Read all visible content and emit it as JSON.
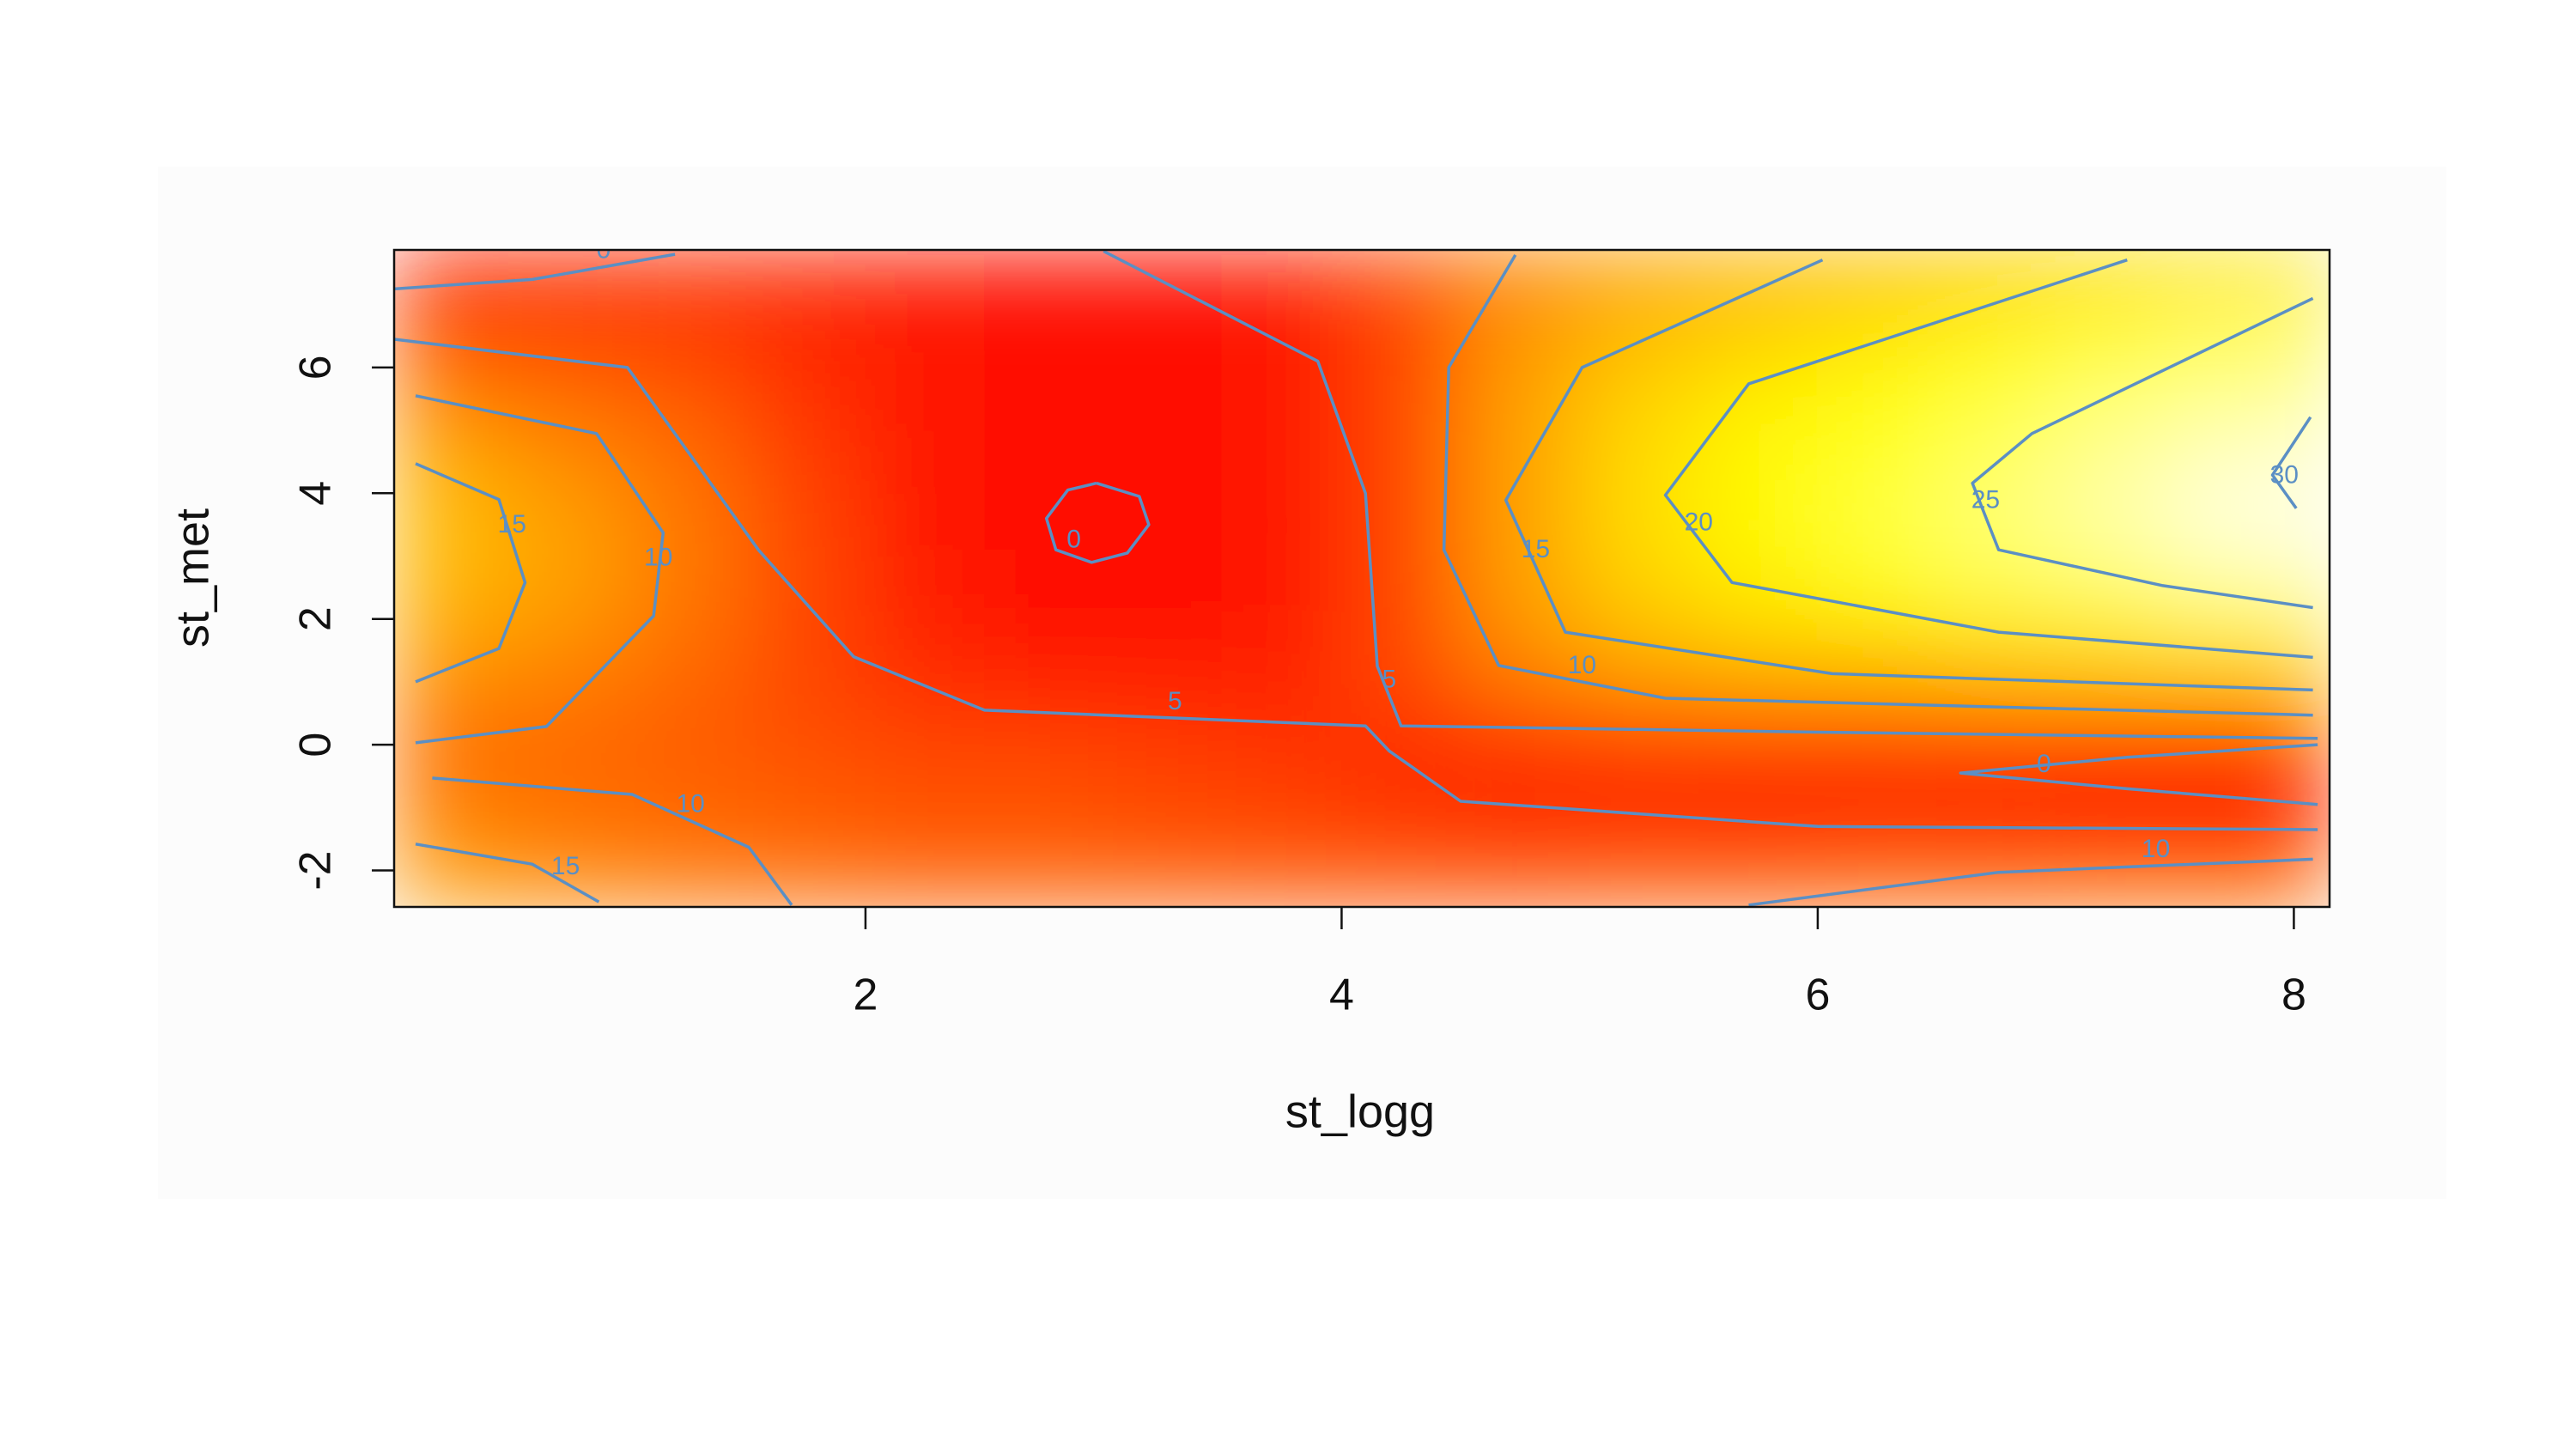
{
  "chart_data": {
    "type": "heatmap",
    "xlabel": "st_logg",
    "ylabel": "st_met",
    "xlim": [
      0.02,
      8.15
    ],
    "ylim": [
      -2.58,
      7.87
    ],
    "xticks": [
      2,
      4,
      6,
      8
    ],
    "yticks": [
      -2,
      0,
      2,
      4,
      6
    ],
    "colormap": "heat",
    "contour_color": "#5b8fc4",
    "x": [
      0.25,
      0.75,
      1.25,
      1.75,
      2.25,
      2.75,
      3.25,
      3.75,
      4.25,
      4.75,
      5.25,
      5.75,
      6.25,
      6.75,
      7.25,
      7.75
    ],
    "y": [
      -2.25,
      -1.5,
      -0.75,
      0,
      0.75,
      1.5,
      2.5,
      3.5,
      4.5,
      5.5,
      6.5,
      7.5
    ],
    "z": [
      [
        15,
        13,
        11,
        10,
        9,
        9,
        9,
        8,
        8,
        8,
        9,
        9,
        10,
        10,
        11,
        11
      ],
      [
        13,
        11,
        10,
        9,
        8,
        8,
        7,
        7,
        6,
        5,
        5,
        5,
        5,
        5,
        4,
        4
      ],
      [
        11,
        10,
        9,
        8,
        7,
        7,
        6,
        5,
        3,
        2,
        2,
        1,
        1,
        0,
        -1,
        -1
      ],
      [
        10,
        9,
        8,
        7,
        6,
        6,
        5,
        4,
        3,
        3,
        4,
        4,
        4,
        4,
        4,
        4
      ],
      [
        12,
        11,
        9,
        6,
        4,
        3,
        3,
        3,
        6,
        10,
        12,
        13,
        13,
        14,
        14,
        14
      ],
      [
        15,
        13,
        10,
        6,
        3,
        1,
        1,
        2,
        6,
        13,
        17,
        19,
        20,
        21,
        22,
        23
      ],
      [
        17,
        15,
        11,
        6,
        2,
        0,
        0,
        1,
        6,
        15,
        20,
        23,
        25,
        27,
        28,
        30
      ],
      [
        18,
        15,
        11,
        6,
        1,
        -1,
        -0.5,
        1,
        6,
        15,
        21,
        24,
        27,
        29,
        31,
        33
      ],
      [
        16,
        13,
        10,
        5,
        1,
        0,
        0,
        1,
        6,
        15,
        21,
        24,
        26,
        28,
        30,
        32
      ],
      [
        12,
        10,
        8,
        4,
        1,
        0,
        0,
        1,
        6,
        15,
        20,
        23,
        25,
        27,
        29,
        30
      ],
      [
        7,
        6,
        5,
        3,
        1,
        0,
        0,
        1,
        6,
        14,
        18,
        20,
        22,
        24,
        26,
        28
      ],
      [
        1,
        2,
        3,
        3,
        2,
        1,
        1,
        2,
        6,
        12,
        15,
        17,
        18,
        19,
        21,
        22
      ]
    ],
    "contours": [
      {
        "level": 0,
        "x": [
          0.02,
          0.6,
          1.2
        ],
        "y": [
          7.25,
          7.4,
          7.8
        ]
      },
      {
        "level": 5,
        "x": [
          0.02,
          1.0,
          1.55,
          1.95,
          2.5,
          4.1,
          4.2,
          4.5,
          6.0,
          8.1
        ],
        "y": [
          6.45,
          6.0,
          3.1,
          1.4,
          0.55,
          0.3,
          -0.1,
          -0.9,
          -1.3,
          -1.35
        ]
      },
      {
        "level": 5,
        "x": [
          3.0,
          3.9,
          4.1,
          4.15,
          4.25,
          6.0,
          8.1
        ],
        "y": [
          7.85,
          6.1,
          4.0,
          1.25,
          0.3,
          0.2,
          0.1
        ]
      },
      {
        "level": 0,
        "x": [
          2.97,
          3.15,
          3.19,
          3.1,
          2.95,
          2.8,
          2.76,
          2.85,
          2.97
        ],
        "y": [
          4.16,
          3.95,
          3.5,
          3.05,
          2.9,
          3.1,
          3.6,
          4.05,
          4.16
        ]
      },
      {
        "level": 0,
        "x": [
          8.1,
          7.3,
          6.6,
          7.3,
          8.1
        ],
        "y": [
          0.0,
          -0.2,
          -0.45,
          -0.7,
          -0.95
        ]
      },
      {
        "level": 10,
        "x": [
          0.11,
          0.66,
          1.11,
          1.15,
          0.87,
          0.11
        ],
        "y": [
          0.03,
          0.29,
          2.05,
          3.37,
          4.95,
          5.55
        ]
      },
      {
        "level": 15,
        "x": [
          0.11,
          0.46,
          0.57,
          0.46,
          0.11
        ],
        "y": [
          1.0,
          1.53,
          2.58,
          3.9,
          4.47
        ]
      },
      {
        "level": 10,
        "x": [
          0.18,
          1.02,
          1.51,
          1.69
        ],
        "y": [
          -0.53,
          -0.79,
          -1.63,
          -2.55
        ]
      },
      {
        "level": 15,
        "x": [
          0.11,
          0.6,
          0.88
        ],
        "y": [
          -1.58,
          -1.9,
          -2.5
        ]
      },
      {
        "level": 10,
        "x": [
          4.73,
          4.45,
          4.43,
          4.66,
          5.36,
          6.76,
          8.08
        ],
        "y": [
          7.79,
          6.0,
          3.1,
          1.26,
          0.74,
          0.6,
          0.47
        ]
      },
      {
        "level": 15,
        "x": [
          6.02,
          5.01,
          4.69,
          4.94,
          6.06,
          8.08
        ],
        "y": [
          7.71,
          6.0,
          3.89,
          1.79,
          1.13,
          0.87
        ]
      },
      {
        "level": 20,
        "x": [
          7.3,
          5.71,
          5.36,
          5.64,
          6.76,
          8.08
        ],
        "y": [
          7.71,
          5.74,
          3.97,
          2.58,
          1.79,
          1.39
        ]
      },
      {
        "level": 25,
        "x": [
          8.08,
          6.9,
          6.65,
          6.76,
          7.45,
          8.08
        ],
        "y": [
          7.1,
          4.95,
          4.16,
          3.1,
          2.53,
          2.18
        ]
      },
      {
        "level": 30,
        "x": [
          8.07,
          7.91,
          8.01
        ],
        "y": [
          5.21,
          4.29,
          3.76
        ]
      },
      {
        "level": 10,
        "x": [
          5.71,
          6.76,
          8.08
        ],
        "y": [
          -2.55,
          -2.03,
          -1.82
        ]
      }
    ]
  }
}
